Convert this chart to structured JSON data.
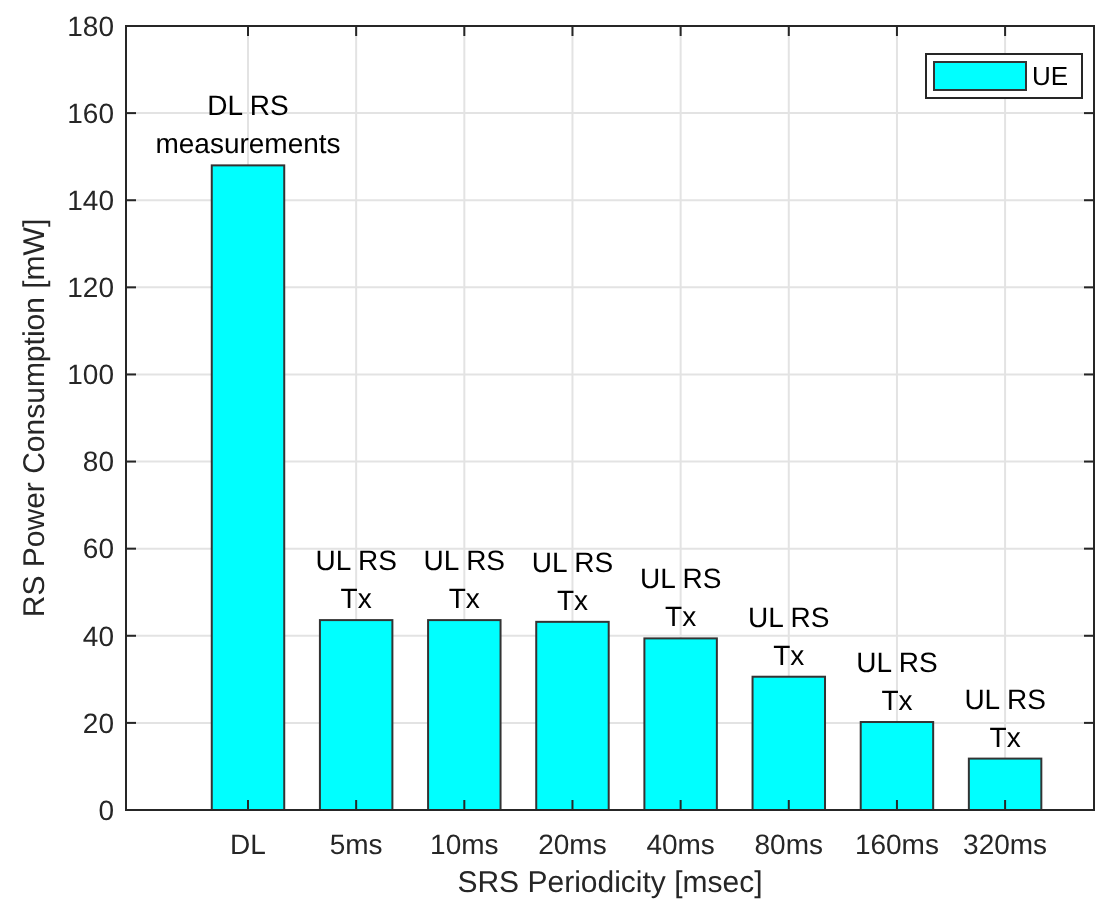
{
  "chart_data": {
    "type": "bar",
    "xlabel": "SRS Periodicity [msec]",
    "ylabel": "RS Power Consumption [mW]",
    "categories": [
      "DL",
      "5ms",
      "10ms",
      "20ms",
      "40ms",
      "80ms",
      "160ms",
      "320ms"
    ],
    "series": [
      {
        "name": "UE",
        "color": "#00ffff",
        "values": [
          148,
          43.6,
          43.6,
          43.2,
          39.4,
          30.6,
          20.2,
          11.8
        ]
      }
    ],
    "ylim": [
      0,
      180
    ],
    "yticks": [
      0,
      20,
      40,
      60,
      80,
      100,
      120,
      140,
      160,
      180
    ],
    "grid": true,
    "legend": "top right",
    "annotations": [
      {
        "text": "DL RS\nmeasurements",
        "x": "DL",
        "y": 148
      },
      {
        "text": "UL RS\nTx",
        "x": "5ms",
        "y": 43.6
      },
      {
        "text": "UL RS\nTx",
        "x": "10ms",
        "y": 43.6
      },
      {
        "text": "UL RS\nTx",
        "x": "20ms",
        "y": 43.2
      },
      {
        "text": "UL RS\nTx",
        "x": "40ms",
        "y": 39.4
      },
      {
        "text": "UL RS\nTx",
        "x": "80ms",
        "y": 30.6
      },
      {
        "text": "UL RS\nTx",
        "x": "160ms",
        "y": 20.2
      },
      {
        "text": "UL RS\nTx",
        "x": "320ms",
        "y": 11.8
      }
    ]
  }
}
